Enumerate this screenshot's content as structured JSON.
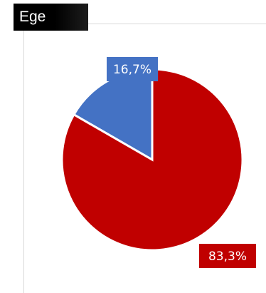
{
  "chart_data": {
    "type": "pie",
    "title": "Ege",
    "slices": [
      {
        "label": "16,7%",
        "value": 16.7,
        "color": "#4472c4"
      },
      {
        "label": "83,3%",
        "value": 83.3,
        "color": "#c00000"
      }
    ],
    "start_angle_deg": -60.12,
    "direction": "clockwise",
    "legend": "none",
    "grid": false
  }
}
